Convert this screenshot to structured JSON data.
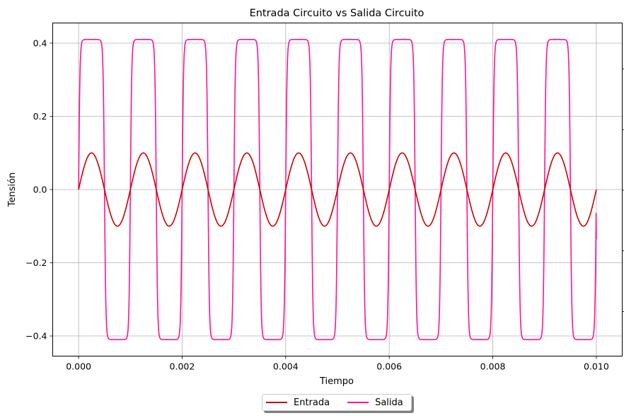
{
  "chart_data": {
    "type": "line",
    "title": "Entrada Circuito vs Salida Circuito",
    "xlabel": "Tiempo",
    "ylabel": "Tensión",
    "xlim": [
      -0.0005,
      0.0105
    ],
    "ylim": [
      -0.455,
      0.455
    ],
    "x_ticks": [
      0.0,
      0.002,
      0.004,
      0.006,
      0.008,
      0.01
    ],
    "x_tick_labels": [
      "0.000",
      "0.002",
      "0.004",
      "0.006",
      "0.008",
      "0.010"
    ],
    "y_ticks": [
      0.4,
      0.2,
      0.0,
      -0.2,
      -0.4
    ],
    "y_tick_labels": [
      "0.4",
      "0.2",
      "0.0",
      "−0.2",
      "−0.4"
    ],
    "grid": true,
    "legend_position": "bottom-center",
    "series": [
      {
        "name": "Entrada",
        "color": "#cc0000",
        "x_start": 0.0,
        "x_end": 0.01,
        "amplitude": 0.1,
        "frequency_hz": 1000
      },
      {
        "name": "Salida",
        "color": "#ff1493",
        "x_start": 0.0,
        "x_end": 0.01,
        "amplitude": 0.41,
        "frequency_hz": 1000,
        "end_value": -0.135
      }
    ]
  }
}
